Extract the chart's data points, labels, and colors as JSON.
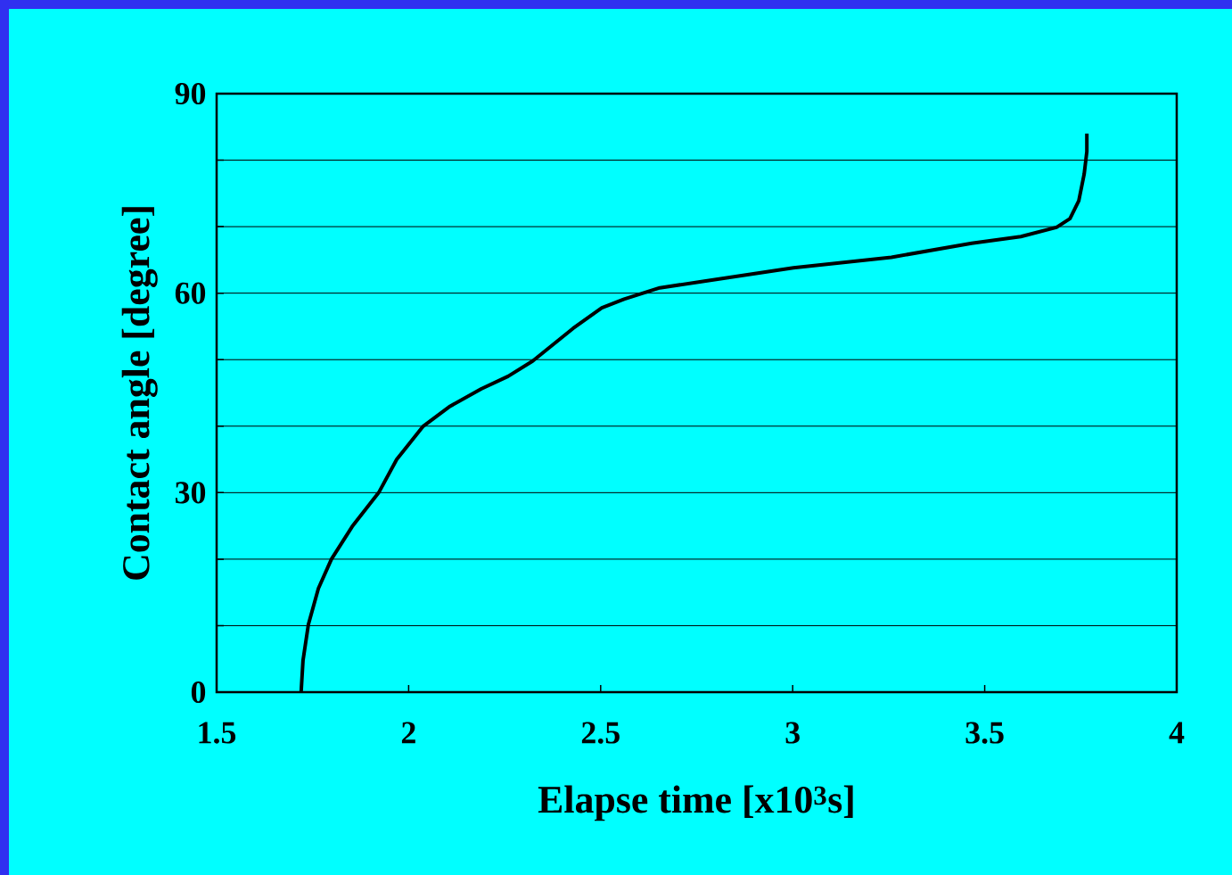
{
  "chart_data": {
    "type": "line",
    "xlabel": "Elapse time [x10$^{3}$s]",
    "ylabel": "Contact angle  [degree]",
    "x": [
      1.72,
      1.725,
      1.739,
      1.765,
      1.799,
      1.853,
      1.922,
      1.969,
      2.038,
      2.108,
      2.189,
      2.259,
      2.323,
      2.428,
      2.503,
      2.561,
      2.654,
      2.77,
      3.002,
      3.257,
      3.466,
      3.594,
      3.687,
      3.722,
      3.745,
      3.759,
      3.766,
      3.766
    ],
    "series": [
      {
        "color": "#000000",
        "values": [
          0,
          4.8,
          10.2,
          15.6,
          20,
          24.9,
          30,
          35,
          40,
          43,
          45.6,
          47.5,
          49.8,
          54.7,
          57.8,
          59.1,
          60.8,
          61.8,
          63.8,
          65.4,
          67.5,
          68.5,
          69.9,
          71.2,
          73.9,
          77.9,
          81.3,
          84
        ]
      }
    ],
    "xlim": [
      1.5,
      4
    ],
    "xticks": [
      1.5,
      2,
      2.5,
      3,
      3.5,
      4
    ],
    "ylim": [
      0,
      90
    ],
    "yticks": [
      0,
      {
        "value": 10,
        "label": null
      },
      {
        "value": 20,
        "label": null
      },
      30,
      {
        "value": 40,
        "label": null
      },
      {
        "value": 50,
        "label": null
      },
      60,
      {
        "value": 70,
        "label": null
      },
      {
        "value": 80,
        "label": null
      },
      90
    ],
    "grid": "y",
    "marker": "none",
    "line_style": "solid"
  }
}
